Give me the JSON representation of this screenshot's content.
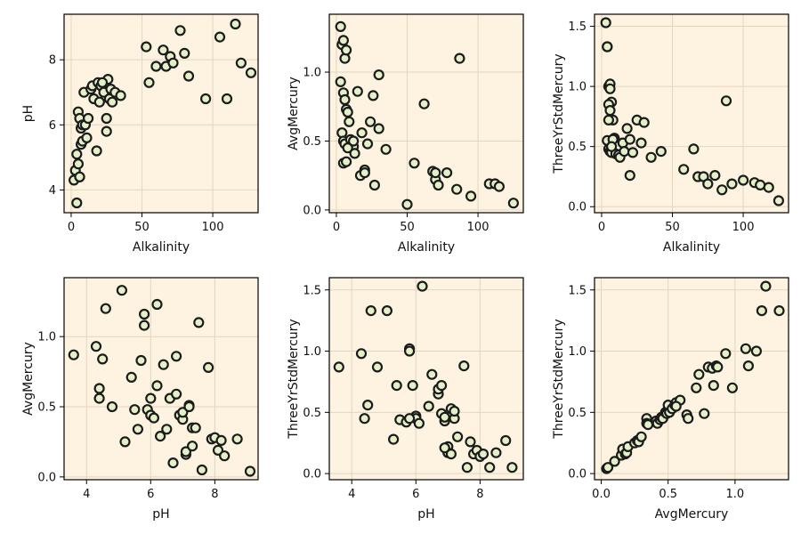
{
  "chart_data": [
    {
      "type": "scatter",
      "xlabel": "Alkalinity",
      "ylabel": "pH",
      "xlim": [
        -5,
        132
      ],
      "ylim": [
        3.3,
        9.4
      ],
      "xticks": [
        0,
        50,
        100
      ],
      "yticks": [
        4,
        6,
        8
      ],
      "x": [
        2,
        3,
        4,
        5,
        5,
        6,
        6,
        7,
        7,
        8,
        8,
        9,
        10,
        11,
        12,
        14,
        15,
        16,
        18,
        19,
        20,
        21,
        23,
        25,
        26,
        27,
        28,
        29,
        31,
        35,
        53,
        55,
        60,
        65,
        67,
        70,
        72,
        77,
        80,
        83,
        95,
        105,
        110,
        116,
        120,
        127,
        4,
        6,
        25,
        22
      ],
      "y": [
        4.3,
        4.6,
        5.1,
        6.4,
        4.8,
        6.2,
        4.4,
        5.9,
        5.4,
        5.5,
        6.0,
        7.0,
        6.0,
        5.6,
        6.2,
        7.1,
        7.2,
        6.8,
        5.2,
        7.3,
        6.7,
        7.2,
        7.0,
        5.8,
        7.4,
        6.8,
        7.1,
        6.7,
        7.0,
        6.9,
        8.4,
        7.3,
        7.8,
        8.3,
        7.8,
        8.1,
        7.9,
        8.9,
        8.2,
        7.5,
        6.8,
        8.7,
        6.8,
        9.1,
        7.9,
        7.6,
        3.6,
        4.4,
        6.2,
        7.3
      ]
    },
    {
      "type": "scatter",
      "xlabel": "Alkalinity",
      "ylabel": "AvgMercury",
      "xlim": [
        -5,
        132
      ],
      "ylim": [
        -0.02,
        1.42
      ],
      "xticks": [
        0,
        50,
        100
      ],
      "yticks": [
        0.0,
        0.5,
        1.0
      ],
      "x": [
        3,
        4,
        5,
        3,
        6,
        7,
        5,
        6,
        7,
        8,
        9,
        4,
        5,
        6,
        10,
        12,
        13,
        15,
        18,
        20,
        22,
        24,
        26,
        30,
        35,
        55,
        62,
        68,
        70,
        72,
        78,
        85,
        95,
        108,
        112,
        115,
        125,
        87,
        30,
        5,
        7,
        8,
        17,
        20,
        27,
        12,
        70,
        50
      ],
      "y": [
        1.33,
        1.2,
        1.23,
        0.93,
        1.1,
        1.16,
        0.85,
        0.8,
        0.73,
        0.71,
        0.64,
        0.56,
        0.5,
        0.48,
        0.51,
        0.46,
        0.41,
        0.86,
        0.56,
        0.29,
        0.48,
        0.64,
        0.83,
        0.59,
        0.44,
        0.34,
        0.77,
        0.28,
        0.22,
        0.18,
        0.27,
        0.15,
        0.1,
        0.19,
        0.19,
        0.17,
        0.05,
        1.1,
        0.98,
        0.34,
        0.35,
        0.45,
        0.25,
        0.27,
        0.18,
        0.5,
        0.27,
        0.04
      ]
    },
    {
      "type": "scatter",
      "xlabel": "Alkalinity",
      "ylabel": "ThreeYrStdMercury",
      "xlim": [
        -5,
        132
      ],
      "ylim": [
        -0.05,
        1.6
      ],
      "xticks": [
        0,
        50,
        100
      ],
      "yticks": [
        0.0,
        0.5,
        1.0,
        1.5
      ],
      "x": [
        3,
        4,
        5,
        6,
        4,
        7,
        5,
        6,
        8,
        9,
        4,
        5,
        6,
        7,
        8,
        10,
        12,
        13,
        15,
        16,
        18,
        20,
        22,
        25,
        28,
        30,
        35,
        42,
        58,
        65,
        68,
        72,
        75,
        80,
        85,
        92,
        100,
        108,
        112,
        118,
        125,
        88,
        5,
        7,
        6,
        20
      ],
      "y": [
        1.53,
        1.33,
        1.0,
        1.02,
        1.33,
        0.87,
        0.85,
        0.8,
        0.72,
        0.57,
        0.55,
        0.48,
        0.46,
        0.45,
        0.56,
        0.44,
        0.43,
        0.41,
        0.53,
        0.46,
        0.65,
        0.56,
        0.45,
        0.72,
        0.53,
        0.7,
        0.41,
        0.46,
        0.31,
        0.48,
        0.25,
        0.25,
        0.19,
        0.26,
        0.14,
        0.19,
        0.22,
        0.2,
        0.18,
        0.16,
        0.05,
        0.88,
        0.72,
        0.5,
        0.98,
        0.26
      ]
    },
    {
      "type": "scatter",
      "xlabel": "pH",
      "ylabel": "AvgMercury",
      "xlim": [
        3.3,
        9.35
      ],
      "ylim": [
        -0.02,
        1.42
      ],
      "xticks": [
        4,
        6,
        8
      ],
      "yticks": [
        0.0,
        0.5,
        1.0
      ],
      "x": [
        3.6,
        4.3,
        4.4,
        4.4,
        4.5,
        4.6,
        4.8,
        5.1,
        5.2,
        5.4,
        5.5,
        5.6,
        5.7,
        5.8,
        5.8,
        5.9,
        6.0,
        6.0,
        6.1,
        6.2,
        6.2,
        6.3,
        6.4,
        6.5,
        6.6,
        6.7,
        6.8,
        6.8,
        6.9,
        7.0,
        7.0,
        7.1,
        7.1,
        7.2,
        7.2,
        7.3,
        7.3,
        7.4,
        7.5,
        7.6,
        7.8,
        7.9,
        8.0,
        8.1,
        8.2,
        8.3,
        8.7,
        9.1
      ],
      "y": [
        0.87,
        0.93,
        0.63,
        0.56,
        0.84,
        1.2,
        0.5,
        1.33,
        0.25,
        0.71,
        0.48,
        0.34,
        0.83,
        1.16,
        1.08,
        0.48,
        0.56,
        0.44,
        0.42,
        0.65,
        1.23,
        0.29,
        0.8,
        0.34,
        0.56,
        0.1,
        0.86,
        0.59,
        0.44,
        0.41,
        0.46,
        0.16,
        0.18,
        0.51,
        0.5,
        0.35,
        0.22,
        0.35,
        1.1,
        0.05,
        0.78,
        0.27,
        0.28,
        0.19,
        0.26,
        0.15,
        0.27,
        0.04
      ]
    },
    {
      "type": "scatter",
      "xlabel": "pH",
      "ylabel": "ThreeYrStdMercury",
      "xlim": [
        3.3,
        9.35
      ],
      "ylim": [
        -0.05,
        1.6
      ],
      "xticks": [
        4,
        6,
        8
      ],
      "yticks": [
        0.0,
        0.5,
        1.0,
        1.5
      ],
      "x": [
        3.6,
        4.3,
        4.4,
        4.5,
        4.6,
        4.8,
        5.1,
        5.3,
        5.4,
        5.5,
        5.7,
        5.8,
        5.8,
        5.9,
        6.0,
        6.0,
        6.1,
        6.2,
        6.4,
        6.5,
        6.7,
        6.7,
        6.8,
        6.8,
        6.9,
        6.9,
        7.0,
        7.0,
        7.1,
        7.1,
        7.2,
        7.2,
        7.3,
        7.5,
        7.6,
        7.7,
        7.8,
        7.9,
        8.0,
        8.1,
        8.3,
        8.5,
        8.8,
        9.0,
        5.8,
        6.9
      ],
      "y": [
        0.87,
        0.98,
        0.45,
        0.56,
        1.33,
        0.87,
        1.33,
        0.28,
        0.72,
        0.44,
        0.42,
        1.02,
        1.0,
        0.72,
        0.47,
        0.45,
        0.41,
        1.53,
        0.55,
        0.81,
        0.65,
        0.69,
        0.72,
        0.49,
        0.43,
        0.46,
        0.22,
        0.17,
        0.53,
        0.16,
        0.45,
        0.51,
        0.3,
        0.88,
        0.05,
        0.26,
        0.16,
        0.19,
        0.14,
        0.16,
        0.05,
        0.17,
        0.27,
        0.05,
        0.45,
        0.21
      ]
    },
    {
      "type": "scatter",
      "xlabel": "AvgMercury",
      "ylabel": "ThreeYrStdMercury",
      "xlim": [
        -0.05,
        1.4
      ],
      "ylim": [
        -0.05,
        1.6
      ],
      "xticks": [
        0.0,
        0.5,
        1.0
      ],
      "yticks": [
        0.0,
        0.5,
        1.0,
        1.5
      ],
      "x": [
        0.04,
        0.05,
        0.1,
        0.15,
        0.16,
        0.18,
        0.19,
        0.2,
        0.25,
        0.27,
        0.28,
        0.3,
        0.34,
        0.34,
        0.35,
        0.41,
        0.42,
        0.44,
        0.45,
        0.46,
        0.48,
        0.49,
        0.5,
        0.51,
        0.53,
        0.55,
        0.56,
        0.59,
        0.64,
        0.65,
        0.71,
        0.73,
        0.77,
        0.8,
        0.83,
        0.86,
        0.87,
        0.93,
        0.98,
        1.08,
        1.1,
        1.16,
        1.2,
        1.23,
        1.33,
        0.56,
        0.84
      ],
      "y": [
        0.04,
        0.05,
        0.1,
        0.15,
        0.2,
        0.16,
        0.17,
        0.22,
        0.25,
        0.27,
        0.26,
        0.3,
        0.45,
        0.41,
        0.4,
        0.43,
        0.41,
        0.44,
        0.46,
        0.45,
        0.5,
        0.49,
        0.56,
        0.5,
        0.53,
        0.56,
        0.58,
        0.6,
        0.48,
        0.45,
        0.7,
        0.81,
        0.49,
        0.87,
        0.86,
        0.88,
        0.87,
        0.98,
        0.7,
        1.02,
        0.88,
        1.0,
        1.33,
        1.53,
        1.33,
        0.55,
        0.72
      ]
    }
  ]
}
